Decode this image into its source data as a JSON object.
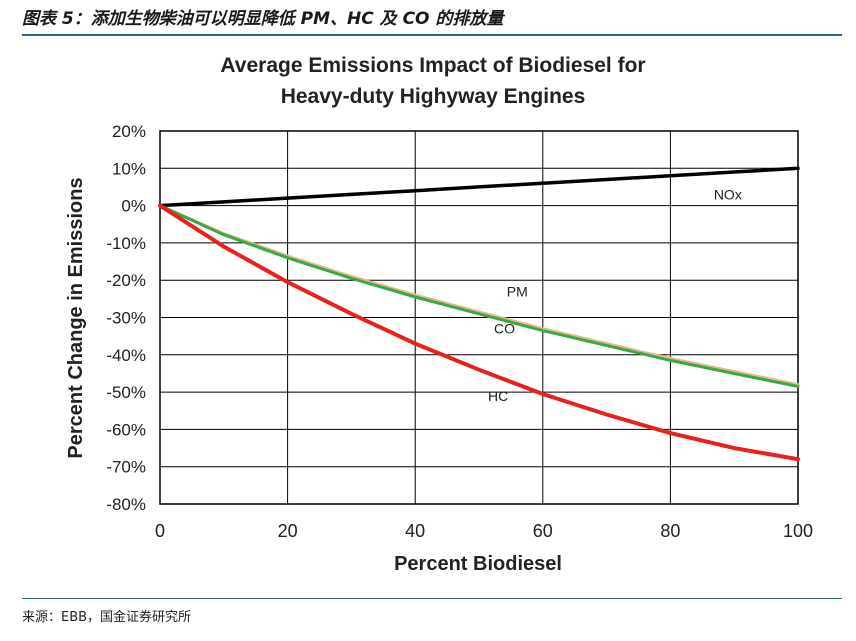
{
  "figure_caption": "图表 5：添加生物柴油可以明显降低 PM、HC 及 CO 的排放量",
  "source_note": "来源：EBB，国金证券研究所",
  "chart_data": {
    "type": "line",
    "title_lines": [
      "Average Emissions Impact of Biodiesel for",
      "Heavy-duty Highyway Engines"
    ],
    "xlabel": "Percent Biodiesel",
    "ylabel": "Percent Change in Emissions",
    "xlim": [
      0,
      100
    ],
    "ylim": [
      -80,
      20
    ],
    "x_ticks": [
      0,
      20,
      40,
      60,
      80,
      100
    ],
    "x_tick_labels": [
      "0",
      "20",
      "40",
      "60",
      "80",
      "100"
    ],
    "y_ticks": [
      20,
      10,
      0,
      -10,
      -20,
      -30,
      -40,
      -50,
      -60,
      -70,
      -80
    ],
    "y_tick_labels": [
      "20%",
      "10%",
      "0%",
      "-10%",
      "-20%",
      "-30%",
      "-40%",
      "-50%",
      "-60%",
      "-70%",
      "-80%"
    ],
    "grid": true,
    "x": [
      0,
      10,
      20,
      30,
      40,
      50,
      60,
      70,
      80,
      90,
      100
    ],
    "series": [
      {
        "name": "NOx",
        "color": "#000000",
        "values": [
          0,
          1,
          2,
          3,
          4,
          5,
          6,
          7,
          8,
          9,
          10
        ]
      },
      {
        "name": "PM",
        "color": "#e8b98a",
        "values": [
          0,
          -7.5,
          -13.5,
          -19,
          -24,
          -28.5,
          -33,
          -37,
          -41,
          -44.5,
          -48
        ]
      },
      {
        "name": "CO",
        "color": "#3aa84a",
        "values": [
          0,
          -7.8,
          -14,
          -19.5,
          -24.5,
          -29,
          -33.5,
          -37.5,
          -41.5,
          -45,
          -48.5
        ]
      },
      {
        "name": "HC",
        "color": "#e8201e",
        "values": [
          0,
          -11,
          -20.5,
          -29,
          -37,
          -44,
          -50.5,
          -56,
          -61,
          -65,
          -68
        ]
      }
    ],
    "series_label_anchor": {
      "NOx": [
        89,
        3
      ],
      "PM": [
        56,
        -23
      ],
      "CO": [
        54,
        -33
      ],
      "HC": [
        53,
        -51
      ]
    }
  }
}
